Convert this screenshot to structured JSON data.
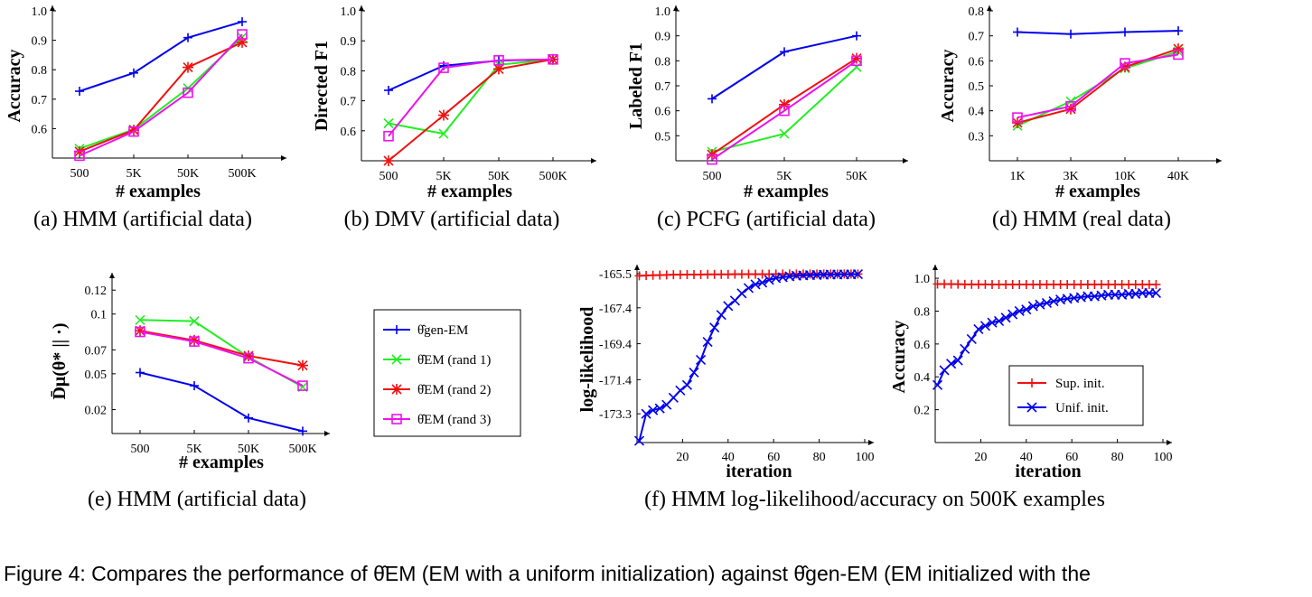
{
  "caption": "Figure 4: Compares the performance of θ̂EM (EM with a uniform initialization) against θ̂gen-EM (EM initialized with the",
  "colors": {
    "gen": "#0000ee",
    "r1": "#22ee22",
    "r2": "#ee1111",
    "r3": "#ee11ee"
  },
  "legend_main": [
    {
      "key": "gen",
      "label": "θ̂gen-EM"
    },
    {
      "key": "r1",
      "label": "θ̂EM (rand 1)"
    },
    {
      "key": "r2",
      "label": "θ̂EM (rand 2)"
    },
    {
      "key": "r3",
      "label": "θ̂EM (rand 3)"
    }
  ],
  "chart_data": [
    {
      "id": "a",
      "type": "line",
      "subcaption": "(a) HMM (artificial data)",
      "xlabel": "# examples",
      "ylabel": "Accuracy",
      "categories": [
        "500",
        "5K",
        "50K",
        "500K"
      ],
      "ylim": [
        0.5,
        1.0
      ],
      "yticks": [
        0.6,
        0.7,
        0.8,
        0.9,
        1.0
      ],
      "ytick_labels": [
        "0.6",
        "0.7",
        "0.8",
        "0.9",
        "1.0"
      ],
      "series": [
        {
          "key": "gen",
          "marker": "plus",
          "values": [
            0.727,
            0.789,
            0.909,
            0.963
          ]
        },
        {
          "key": "r1",
          "marker": "x",
          "values": [
            0.532,
            0.597,
            0.737,
            0.91
          ]
        },
        {
          "key": "r2",
          "marker": "star",
          "values": [
            0.522,
            0.595,
            0.808,
            0.893
          ]
        },
        {
          "key": "r3",
          "marker": "square",
          "values": [
            0.508,
            0.59,
            0.722,
            0.92
          ]
        }
      ]
    },
    {
      "id": "b",
      "type": "line",
      "subcaption": "(b) DMV (artificial data)",
      "xlabel": "# examples",
      "ylabel": "Directed F1",
      "categories": [
        "500",
        "5K",
        "50K",
        "500K"
      ],
      "ylim": [
        0.5,
        1.0
      ],
      "yticks": [
        0.6,
        0.7,
        0.8,
        0.9,
        1.0
      ],
      "ytick_labels": [
        "0.6",
        "0.7",
        "0.8",
        "0.9",
        "1.0"
      ],
      "series": [
        {
          "key": "gen",
          "marker": "plus",
          "values": [
            0.735,
            0.817,
            0.834,
            0.838
          ]
        },
        {
          "key": "r1",
          "marker": "x",
          "values": [
            0.625,
            0.59,
            0.82,
            0.838
          ]
        },
        {
          "key": "r2",
          "marker": "star",
          "values": [
            0.5,
            0.652,
            0.806,
            0.838
          ]
        },
        {
          "key": "r3",
          "marker": "square",
          "values": [
            0.582,
            0.81,
            0.835,
            0.838
          ]
        }
      ]
    },
    {
      "id": "c",
      "type": "line",
      "subcaption": "(c) PCFG (artificial data)",
      "xlabel": "# examples",
      "ylabel": "Labeled F1",
      "categories": [
        "500",
        "5K",
        "50K"
      ],
      "ylim": [
        0.4,
        1.0
      ],
      "yticks": [
        0.5,
        0.6,
        0.7,
        0.8,
        0.9,
        1.0
      ],
      "ytick_labels": [
        "0.5",
        "0.6",
        "0.7",
        "0.8",
        "0.9",
        "1.0"
      ],
      "series": [
        {
          "key": "gen",
          "marker": "plus",
          "values": [
            0.648,
            0.836,
            0.9
          ]
        },
        {
          "key": "r1",
          "marker": "x",
          "values": [
            0.436,
            0.508,
            0.775
          ]
        },
        {
          "key": "r2",
          "marker": "star",
          "values": [
            0.425,
            0.625,
            0.81
          ]
        },
        {
          "key": "r3",
          "marker": "square",
          "values": [
            0.405,
            0.6,
            0.8
          ]
        }
      ]
    },
    {
      "id": "d",
      "type": "line",
      "subcaption": "(d) HMM (real data)",
      "xlabel": "# examples",
      "ylabel": "Accuracy",
      "categories": [
        "1K",
        "3K",
        "10K",
        "40K"
      ],
      "ylim": [
        0.2,
        0.8
      ],
      "yticks": [
        0.3,
        0.4,
        0.5,
        0.6,
        0.7,
        0.8
      ],
      "ytick_labels": [
        "0.3",
        "0.4",
        "0.5",
        "0.6",
        "0.7",
        "0.8"
      ],
      "series": [
        {
          "key": "gen",
          "marker": "plus",
          "values": [
            0.715,
            0.707,
            0.715,
            0.72
          ]
        },
        {
          "key": "r1",
          "marker": "x",
          "values": [
            0.34,
            0.438,
            0.57,
            0.637
          ]
        },
        {
          "key": "r2",
          "marker": "star",
          "values": [
            0.352,
            0.407,
            0.575,
            0.648
          ]
        },
        {
          "key": "r3",
          "marker": "square",
          "values": [
            0.373,
            0.418,
            0.59,
            0.625
          ]
        }
      ]
    },
    {
      "id": "e",
      "type": "line",
      "subcaption": "(e) HMM (artificial data)",
      "xlabel": "# examples",
      "ylabel": "D̄μ(θ* || ·)",
      "categories": [
        "500",
        "5K",
        "50K",
        "500K"
      ],
      "ylim": [
        0.0,
        0.13
      ],
      "yticks": [
        0.02,
        0.05,
        0.07,
        0.1,
        0.12
      ],
      "ytick_labels": [
        "0.02",
        "0.05",
        "0.07",
        "0.1",
        "0.12"
      ],
      "series": [
        {
          "key": "gen",
          "marker": "plus",
          "values": [
            0.051,
            0.04,
            0.013,
            0.002
          ]
        },
        {
          "key": "r1",
          "marker": "x",
          "values": [
            0.095,
            0.094,
            0.064,
            0.039
          ]
        },
        {
          "key": "r2",
          "marker": "star",
          "values": [
            0.086,
            0.078,
            0.065,
            0.057
          ]
        },
        {
          "key": "r3",
          "marker": "square",
          "values": [
            0.085,
            0.077,
            0.063,
            0.04
          ]
        }
      ]
    },
    {
      "id": "f1",
      "type": "line",
      "subcaption": "(f) HMM log-likelihood/accuracy on 500K examples",
      "xlabel": "iteration",
      "ylabel": "log-likelihood",
      "xlim": [
        0,
        100
      ],
      "xticks": [
        20,
        40,
        60,
        80,
        100
      ],
      "ylim": [
        -174.9,
        -165.3
      ],
      "yticks": [
        -165.5,
        -167.4,
        -169.4,
        -171.4,
        -173.3
      ],
      "ytick_labels": [
        "-165.5",
        "-167.4",
        "-169.4",
        "-171.4",
        "-173.3"
      ],
      "x": [
        1,
        4,
        7,
        10,
        13,
        16,
        19,
        22,
        25,
        28,
        31,
        34,
        37,
        40,
        43,
        46,
        49,
        52,
        55,
        58,
        61,
        64,
        67,
        70,
        73,
        76,
        79,
        82,
        85,
        88,
        91,
        94,
        97
      ],
      "series": [
        {
          "name": "Sup. init.",
          "key": "r2",
          "marker": "plus",
          "values": [
            -165.62,
            -165.6,
            -165.59,
            -165.58,
            -165.57,
            -165.56,
            -165.56,
            -165.55,
            -165.55,
            -165.55,
            -165.54,
            -165.54,
            -165.54,
            -165.54,
            -165.53,
            -165.53,
            -165.53,
            -165.53,
            -165.53,
            -165.53,
            -165.52,
            -165.52,
            -165.52,
            -165.52,
            -165.52,
            -165.52,
            -165.52,
            -165.52,
            -165.52,
            -165.52,
            -165.52,
            -165.52,
            -165.52
          ]
        },
        {
          "name": "Unif. init.",
          "key": "gen",
          "marker": "x",
          "values": [
            -174.8,
            -173.3,
            -173.1,
            -173.0,
            -172.8,
            -172.4,
            -172.0,
            -171.7,
            -171.0,
            -170.3,
            -169.3,
            -168.5,
            -167.8,
            -167.3,
            -167.0,
            -166.6,
            -166.3,
            -166.1,
            -166.0,
            -165.85,
            -165.75,
            -165.7,
            -165.65,
            -165.62,
            -165.6,
            -165.58,
            -165.57,
            -165.56,
            -165.55,
            -165.55,
            -165.54,
            -165.54,
            -165.53
          ]
        }
      ]
    },
    {
      "id": "f2",
      "type": "line",
      "subcaption": "",
      "xlabel": "iteration",
      "ylabel": "Accuracy",
      "xlim": [
        0,
        100
      ],
      "xticks": [
        20,
        40,
        60,
        80,
        100
      ],
      "ylim": [
        0.0,
        1.05
      ],
      "yticks": [
        0.2,
        0.4,
        0.6,
        0.8,
        1.0
      ],
      "ytick_labels": [
        "0.2",
        "0.4",
        "0.6",
        "0.8",
        "1.0"
      ],
      "x": [
        1,
        4,
        7,
        10,
        13,
        16,
        19,
        22,
        25,
        28,
        31,
        34,
        37,
        40,
        43,
        46,
        49,
        52,
        55,
        58,
        61,
        64,
        67,
        70,
        73,
        76,
        79,
        82,
        85,
        88,
        91,
        94,
        97
      ],
      "series": [
        {
          "name": "Sup. init.",
          "key": "r2",
          "marker": "plus",
          "values": [
            0.965,
            0.965,
            0.964,
            0.964,
            0.963,
            0.963,
            0.963,
            0.963,
            0.962,
            0.962,
            0.962,
            0.962,
            0.962,
            0.962,
            0.962,
            0.962,
            0.962,
            0.962,
            0.962,
            0.962,
            0.962,
            0.962,
            0.962,
            0.962,
            0.962,
            0.962,
            0.962,
            0.962,
            0.962,
            0.962,
            0.962,
            0.962,
            0.962
          ]
        },
        {
          "name": "Unif. init.",
          "key": "gen",
          "marker": "x",
          "values": [
            0.35,
            0.44,
            0.48,
            0.5,
            0.57,
            0.63,
            0.69,
            0.71,
            0.73,
            0.74,
            0.76,
            0.78,
            0.8,
            0.81,
            0.83,
            0.84,
            0.85,
            0.86,
            0.87,
            0.875,
            0.88,
            0.885,
            0.89,
            0.89,
            0.895,
            0.9,
            0.9,
            0.9,
            0.905,
            0.905,
            0.91,
            0.91,
            0.91
          ]
        }
      ],
      "legend": [
        {
          "key": "r2",
          "marker": "plus",
          "label": "Sup. init."
        },
        {
          "key": "gen",
          "marker": "x",
          "label": "Unif. init."
        }
      ]
    }
  ]
}
